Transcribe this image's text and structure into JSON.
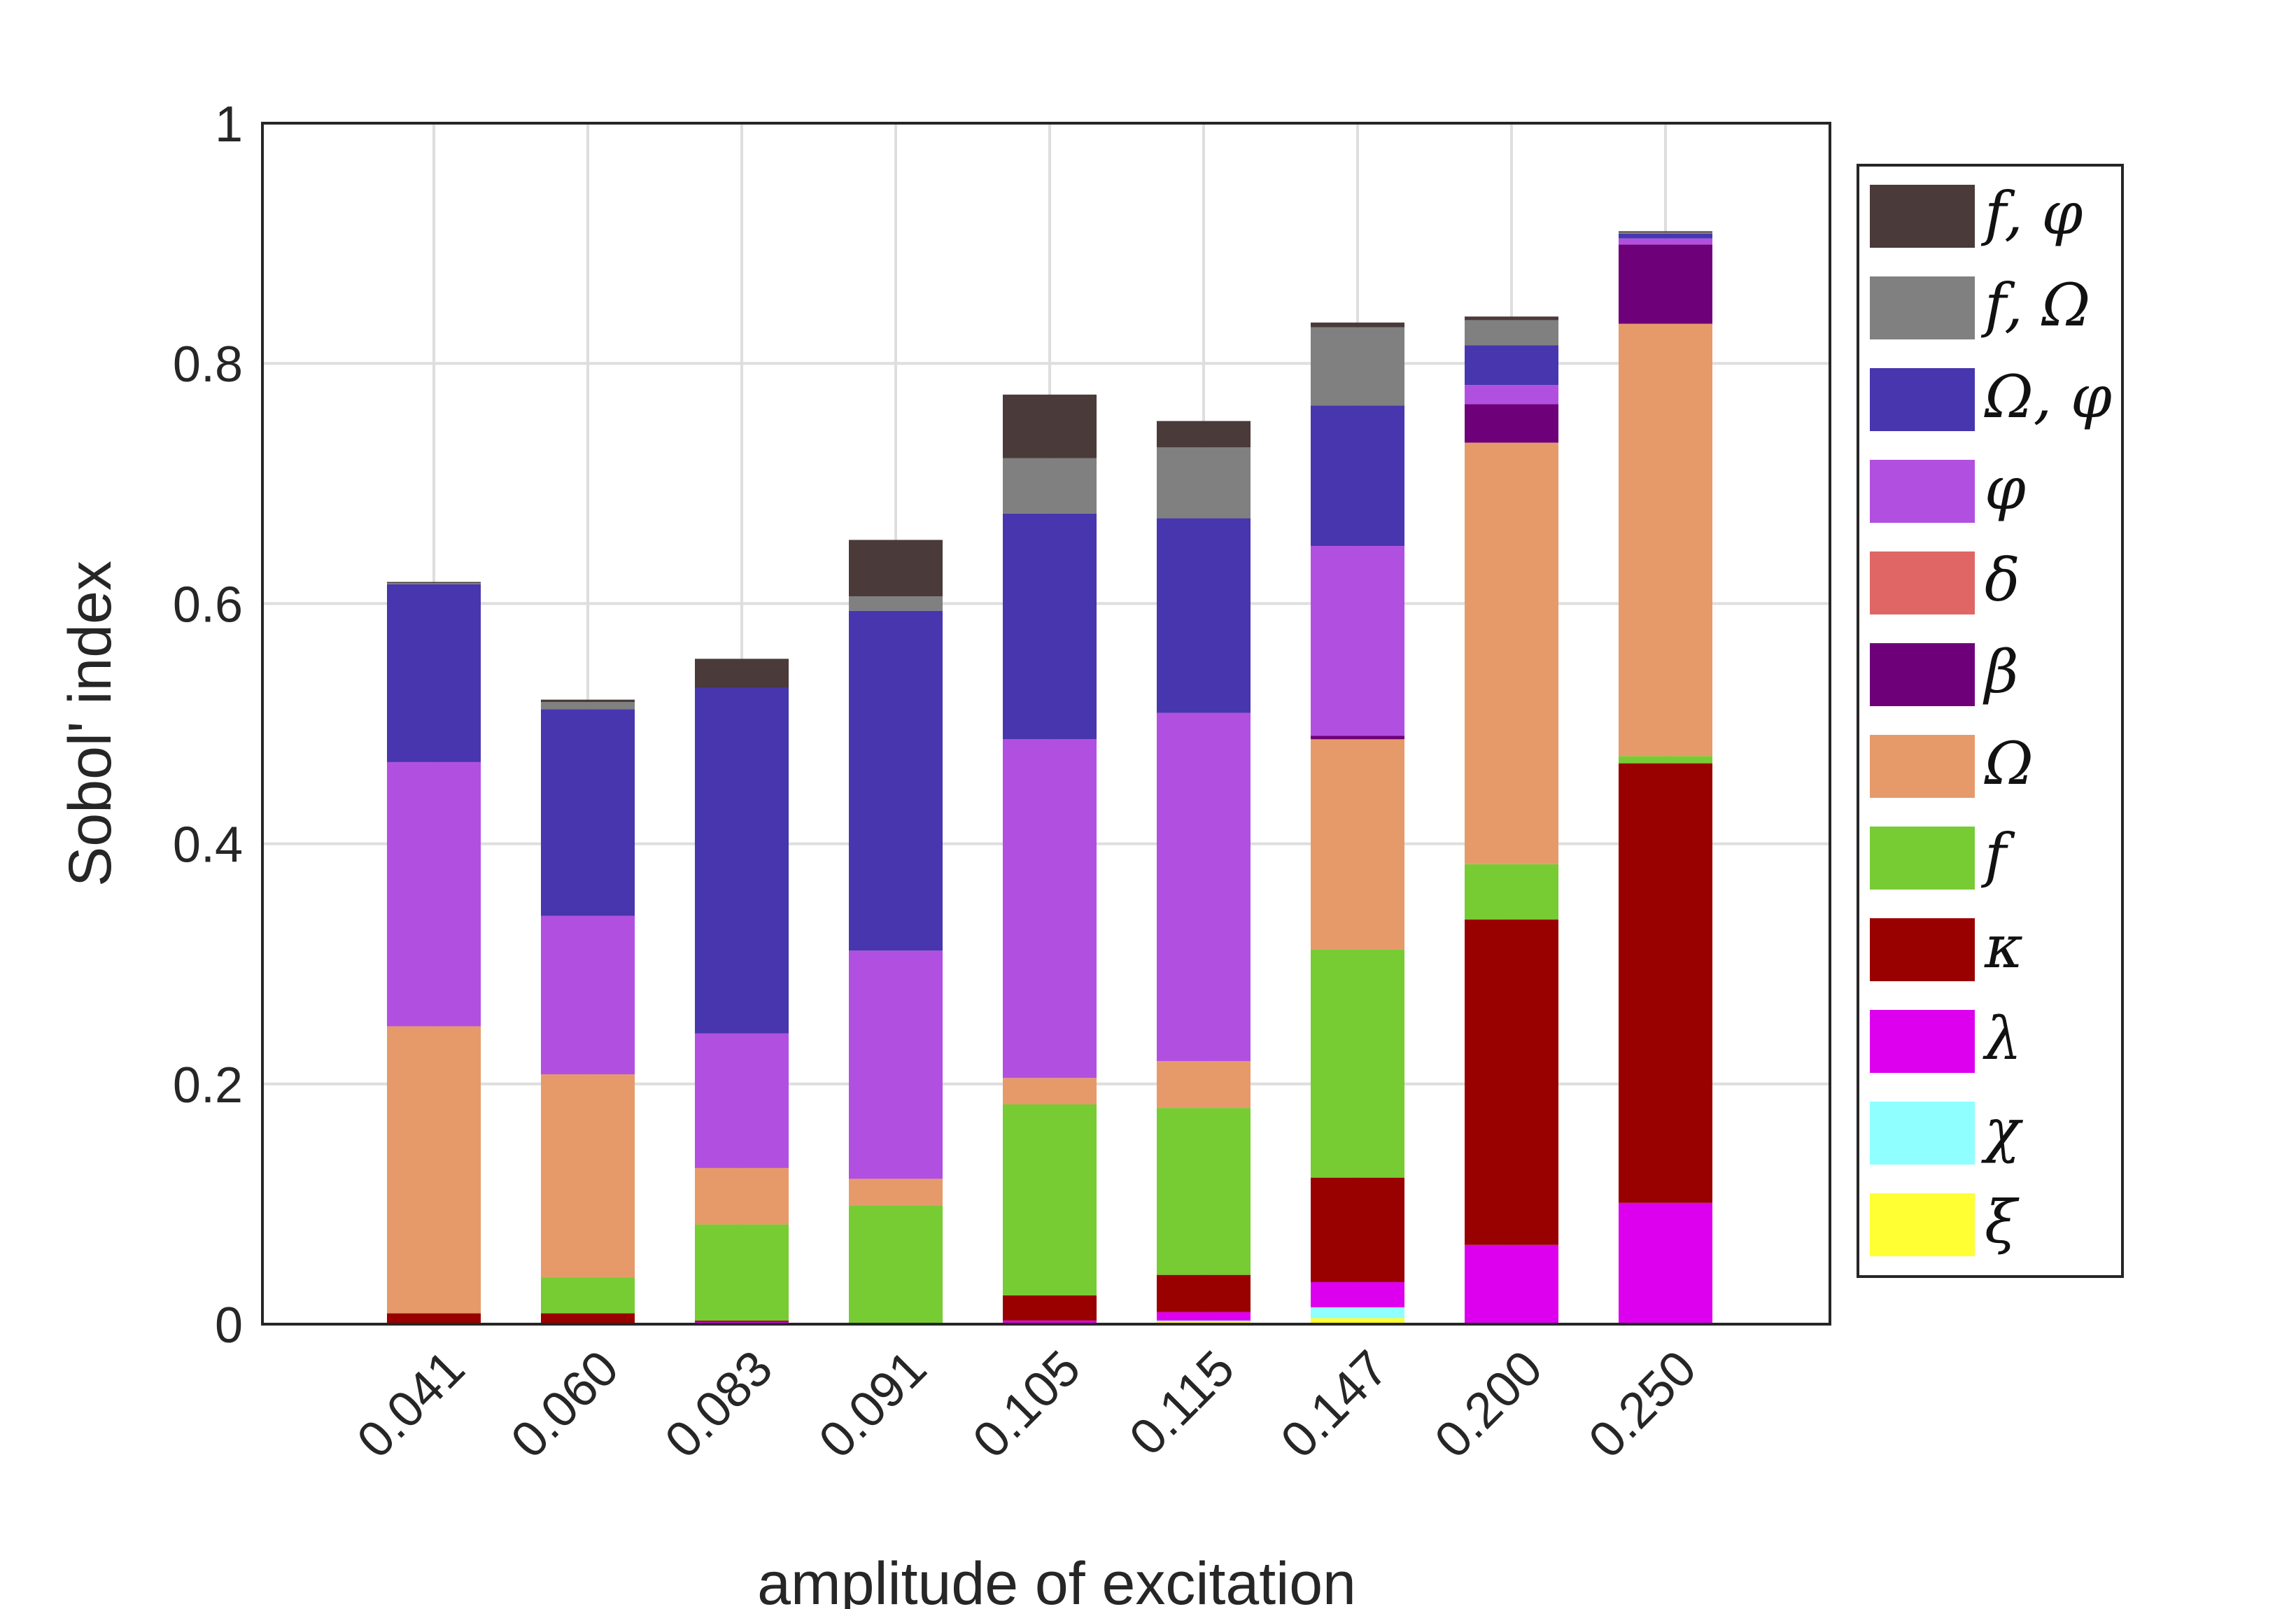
{
  "chart_data": {
    "type": "bar",
    "stacked": true,
    "title": "",
    "xlabel": "amplitude of excitation",
    "ylabel": "Sobol' index",
    "ylim": [
      0,
      1
    ],
    "yticks": [
      {
        "value": 0,
        "label": "0"
      },
      {
        "value": 0.2,
        "label": "0.2"
      },
      {
        "value": 0.4,
        "label": "0.4"
      },
      {
        "value": 0.6,
        "label": "0.6"
      },
      {
        "value": 0.8,
        "label": "0.8"
      },
      {
        "value": 1,
        "label": "1"
      }
    ],
    "grid": true,
    "legend_position": "right",
    "categories": [
      "0.041",
      "0.060",
      "0.083",
      "0.091",
      "0.105",
      "0.115",
      "0.147",
      "0.200",
      "0.250"
    ],
    "series": [
      {
        "name": "ξ",
        "color": "#ffff33",
        "values": [
          0,
          0,
          0,
          0,
          0.001,
          0.002,
          0.005,
          0,
          0
        ]
      },
      {
        "name": "χ",
        "color": "#8fffff",
        "values": [
          0,
          0,
          0,
          0,
          0,
          0.001,
          0.009,
          0,
          0
        ]
      },
      {
        "name": "λ",
        "color": "#dd00ee",
        "values": [
          0.001,
          0.001,
          0.002,
          0.001,
          0.002,
          0.007,
          0.021,
          0.066,
          0.101
        ]
      },
      {
        "name": "κ",
        "color": "#990000",
        "values": [
          0.008,
          0.008,
          0.001,
          0,
          0.021,
          0.031,
          0.087,
          0.271,
          0.366
        ]
      },
      {
        "name": "f",
        "color": "#77cc33",
        "values": [
          0,
          0.03,
          0.08,
          0.098,
          0.159,
          0.139,
          0.19,
          0.046,
          0.006
        ]
      },
      {
        "name": "Ω",
        "color": "#e69a6a",
        "values": [
          0.239,
          0.169,
          0.047,
          0.022,
          0.022,
          0.039,
          0.175,
          0.351,
          0.36
        ]
      },
      {
        "name": "β",
        "color": "#6e007a",
        "values": [
          0,
          0,
          0,
          0,
          0,
          0,
          0.003,
          0.032,
          0.066
        ]
      },
      {
        "name": "δ",
        "color": "#e06666",
        "values": [
          0,
          0,
          0,
          0,
          0,
          0,
          0,
          0,
          0
        ]
      },
      {
        "name": "φ",
        "color": "#b150e0",
        "values": [
          0.22,
          0.132,
          0.112,
          0.19,
          0.282,
          0.29,
          0.158,
          0.016,
          0.005
        ]
      },
      {
        "name": "Ω, φ",
        "color": "#4736ae",
        "values": [
          0.148,
          0.172,
          0.288,
          0.283,
          0.188,
          0.162,
          0.117,
          0.033,
          0.004
        ]
      },
      {
        "name": "f, Ω",
        "color": "#808080",
        "values": [
          0.001,
          0.006,
          0,
          0.012,
          0.046,
          0.059,
          0.065,
          0.021,
          0.001
        ]
      },
      {
        "name": "f, φ",
        "color": "#4a3a3a",
        "values": [
          0.001,
          0.002,
          0.024,
          0.047,
          0.053,
          0.022,
          0.004,
          0.003,
          0.001
        ]
      }
    ],
    "legend_order": [
      "f, φ",
      "f, Ω",
      "Ω, φ",
      "φ",
      "δ",
      "β",
      "Ω",
      "f",
      "κ",
      "λ",
      "χ",
      "ξ"
    ]
  }
}
